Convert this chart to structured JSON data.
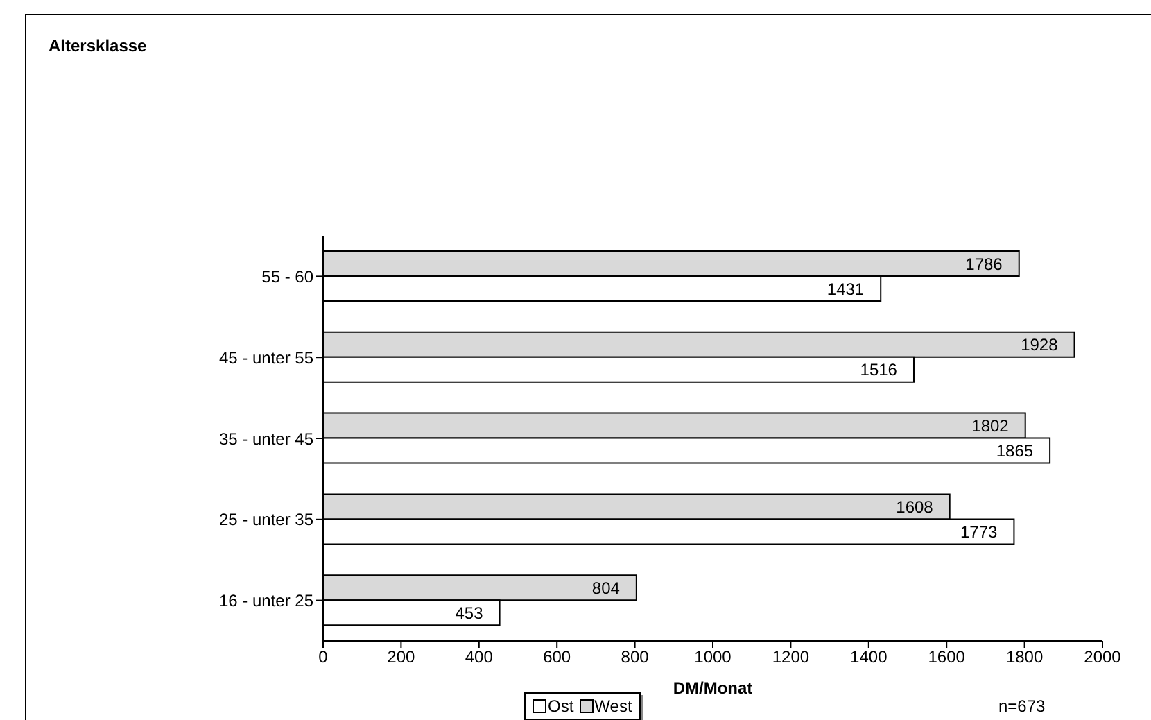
{
  "chart_data": {
    "type": "bar",
    "orientation": "horizontal",
    "xlabel": "DM/Monat",
    "categories": [
      "55 - 60",
      "45 - unter 55",
      "35 - unter 45",
      "25 - unter 35",
      "16 - unter 25"
    ],
    "series": [
      {
        "name": "Ost",
        "color": "#ffffff",
        "values": [
          1431,
          1516,
          1865,
          1773,
          453
        ]
      },
      {
        "name": "West",
        "color": "#d9d9d9",
        "values": [
          1786,
          1928,
          1802,
          1608,
          804
        ]
      }
    ],
    "xlim": [
      0,
      2000
    ],
    "xticks": [
      0,
      200,
      400,
      600,
      800,
      1000,
      1200,
      1400,
      1600,
      1800,
      2000
    ],
    "grid": false,
    "legend": "bottom",
    "data_labels": true,
    "annotations": [
      "Altersklasse",
      "n=673"
    ]
  }
}
